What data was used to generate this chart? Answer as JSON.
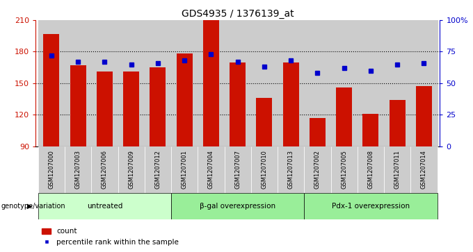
{
  "title": "GDS4935 / 1376139_at",
  "samples": [
    "GSM1207000",
    "GSM1207003",
    "GSM1207006",
    "GSM1207009",
    "GSM1207012",
    "GSM1207001",
    "GSM1207004",
    "GSM1207007",
    "GSM1207010",
    "GSM1207013",
    "GSM1207002",
    "GSM1207005",
    "GSM1207008",
    "GSM1207011",
    "GSM1207014"
  ],
  "bar_heights": [
    197,
    167,
    161,
    161,
    165,
    178,
    210,
    170,
    136,
    170,
    117,
    146,
    121,
    134,
    147
  ],
  "percentile_ranks": [
    72,
    67,
    67,
    65,
    66,
    68,
    73,
    67,
    63,
    68,
    58,
    62,
    60,
    65,
    66
  ],
  "bar_color": "#cc1100",
  "dot_color": "#0000cc",
  "ylim_left": [
    90,
    210
  ],
  "ylim_right": [
    0,
    100
  ],
  "yticks_left": [
    90,
    120,
    150,
    180,
    210
  ],
  "yticks_right": [
    0,
    25,
    50,
    75,
    100
  ],
  "yticklabels_right": [
    "0",
    "25",
    "50",
    "75",
    "100%"
  ],
  "group_info": [
    {
      "start": 0,
      "end": 4,
      "label": "untreated",
      "color": "#ccffcc"
    },
    {
      "start": 5,
      "end": 9,
      "label": "β-gal overexpression",
      "color": "#99ee99"
    },
    {
      "start": 10,
      "end": 14,
      "label": "Pdx-1 overexpression",
      "color": "#99ee99"
    }
  ],
  "genotype_label": "genotype/variation",
  "legend_count_label": "count",
  "legend_percentile_label": "percentile rank within the sample",
  "bar_width": 0.6,
  "col_bg_color": "#cccccc",
  "grid_line_ticks": [
    120,
    150,
    180
  ]
}
